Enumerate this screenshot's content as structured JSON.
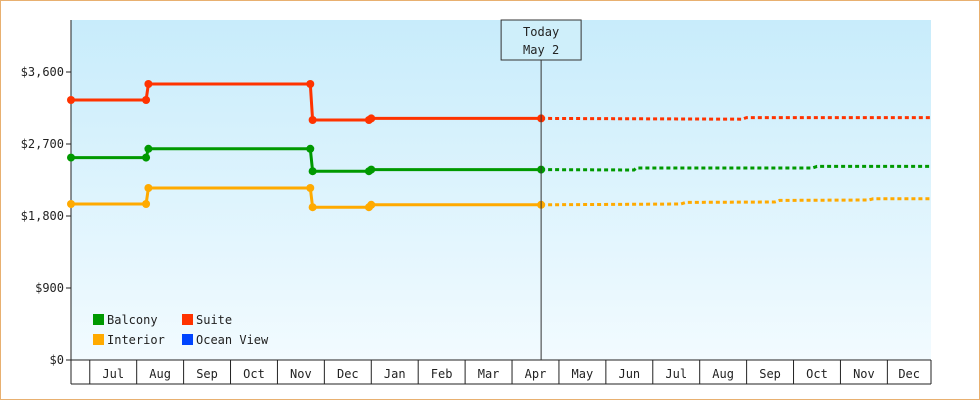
{
  "chart_data": {
    "type": "line",
    "title": "",
    "xlabel": "",
    "ylabel": "",
    "ylim": [
      0,
      4250
    ],
    "y_ticks": [
      0,
      900,
      1800,
      2700,
      3600
    ],
    "y_tick_labels": [
      "$0",
      "$900",
      "$1,800",
      "$2,700",
      "$3,600"
    ],
    "x_range": [
      0,
      18.33
    ],
    "month_labels": [
      "Jul",
      "Aug",
      "Sep",
      "Oct",
      "Nov",
      "Dec",
      "Jan",
      "Feb",
      "Mar",
      "Apr",
      "May",
      "Jun",
      "Jul",
      "Aug",
      "Sep",
      "Oct",
      "Nov",
      "Dec"
    ],
    "today": {
      "label": "Today",
      "date": "May 2",
      "x": 10.02
    },
    "grid": false,
    "legend_position": "bottom-left",
    "series": [
      {
        "name": "Suite",
        "color": "#ff3300",
        "actual": [
          [
            0,
            3250
          ],
          [
            1.6,
            3250
          ],
          [
            1.65,
            3450
          ],
          [
            5.1,
            3450
          ],
          [
            5.15,
            3000
          ],
          [
            6.35,
            3000
          ],
          [
            6.4,
            3020
          ],
          [
            10.02,
            3020
          ]
        ],
        "markers": [
          [
            0,
            3250
          ],
          [
            1.6,
            3250
          ],
          [
            1.65,
            3450
          ],
          [
            5.1,
            3450
          ],
          [
            5.15,
            3000
          ],
          [
            6.35,
            3000
          ],
          [
            6.4,
            3020
          ],
          [
            10.02,
            3020
          ]
        ],
        "projected": [
          [
            10.02,
            3020
          ],
          [
            14.3,
            3010
          ],
          [
            14.4,
            3030
          ],
          [
            18.33,
            3030
          ]
        ]
      },
      {
        "name": "Balcony",
        "color": "#009900",
        "actual": [
          [
            0,
            2530
          ],
          [
            1.6,
            2530
          ],
          [
            1.65,
            2640
          ],
          [
            5.1,
            2640
          ],
          [
            5.15,
            2360
          ],
          [
            6.35,
            2360
          ],
          [
            6.4,
            2380
          ],
          [
            10.02,
            2380
          ]
        ],
        "markers": [
          [
            0,
            2530
          ],
          [
            1.6,
            2530
          ],
          [
            1.65,
            2640
          ],
          [
            5.1,
            2640
          ],
          [
            5.15,
            2360
          ],
          [
            6.35,
            2360
          ],
          [
            6.4,
            2380
          ],
          [
            10.02,
            2380
          ]
        ],
        "projected": [
          [
            10.02,
            2380
          ],
          [
            12.0,
            2375
          ],
          [
            12.05,
            2400
          ],
          [
            15.8,
            2400
          ],
          [
            15.9,
            2420
          ],
          [
            18.33,
            2420
          ]
        ]
      },
      {
        "name": "Interior",
        "color": "#ffaa00",
        "actual": [
          [
            0,
            1950
          ],
          [
            1.6,
            1950
          ],
          [
            1.65,
            2150
          ],
          [
            5.1,
            2150
          ],
          [
            5.15,
            1910
          ],
          [
            6.35,
            1910
          ],
          [
            6.4,
            1940
          ],
          [
            10.02,
            1940
          ]
        ],
        "markers": [
          [
            0,
            1950
          ],
          [
            1.6,
            1950
          ],
          [
            1.65,
            2150
          ],
          [
            5.1,
            2150
          ],
          [
            5.15,
            1910
          ],
          [
            6.35,
            1910
          ],
          [
            6.4,
            1940
          ],
          [
            10.02,
            1940
          ]
        ],
        "projected": [
          [
            10.02,
            1940
          ],
          [
            13.0,
            1950
          ],
          [
            13.1,
            1970
          ],
          [
            15.0,
            1975
          ],
          [
            15.1,
            1995
          ],
          [
            17.0,
            2000
          ],
          [
            17.1,
            2015
          ],
          [
            18.33,
            2015
          ]
        ]
      },
      {
        "name": "Ocean View",
        "color": "#0044ff",
        "actual": [],
        "markers": [],
        "projected": []
      }
    ],
    "legend": [
      {
        "name": "Balcony",
        "color": "#009900"
      },
      {
        "name": "Suite",
        "color": "#ff3300"
      },
      {
        "name": "Interior",
        "color": "#ffaa00"
      },
      {
        "name": "Ocean View",
        "color": "#0044ff"
      }
    ]
  }
}
